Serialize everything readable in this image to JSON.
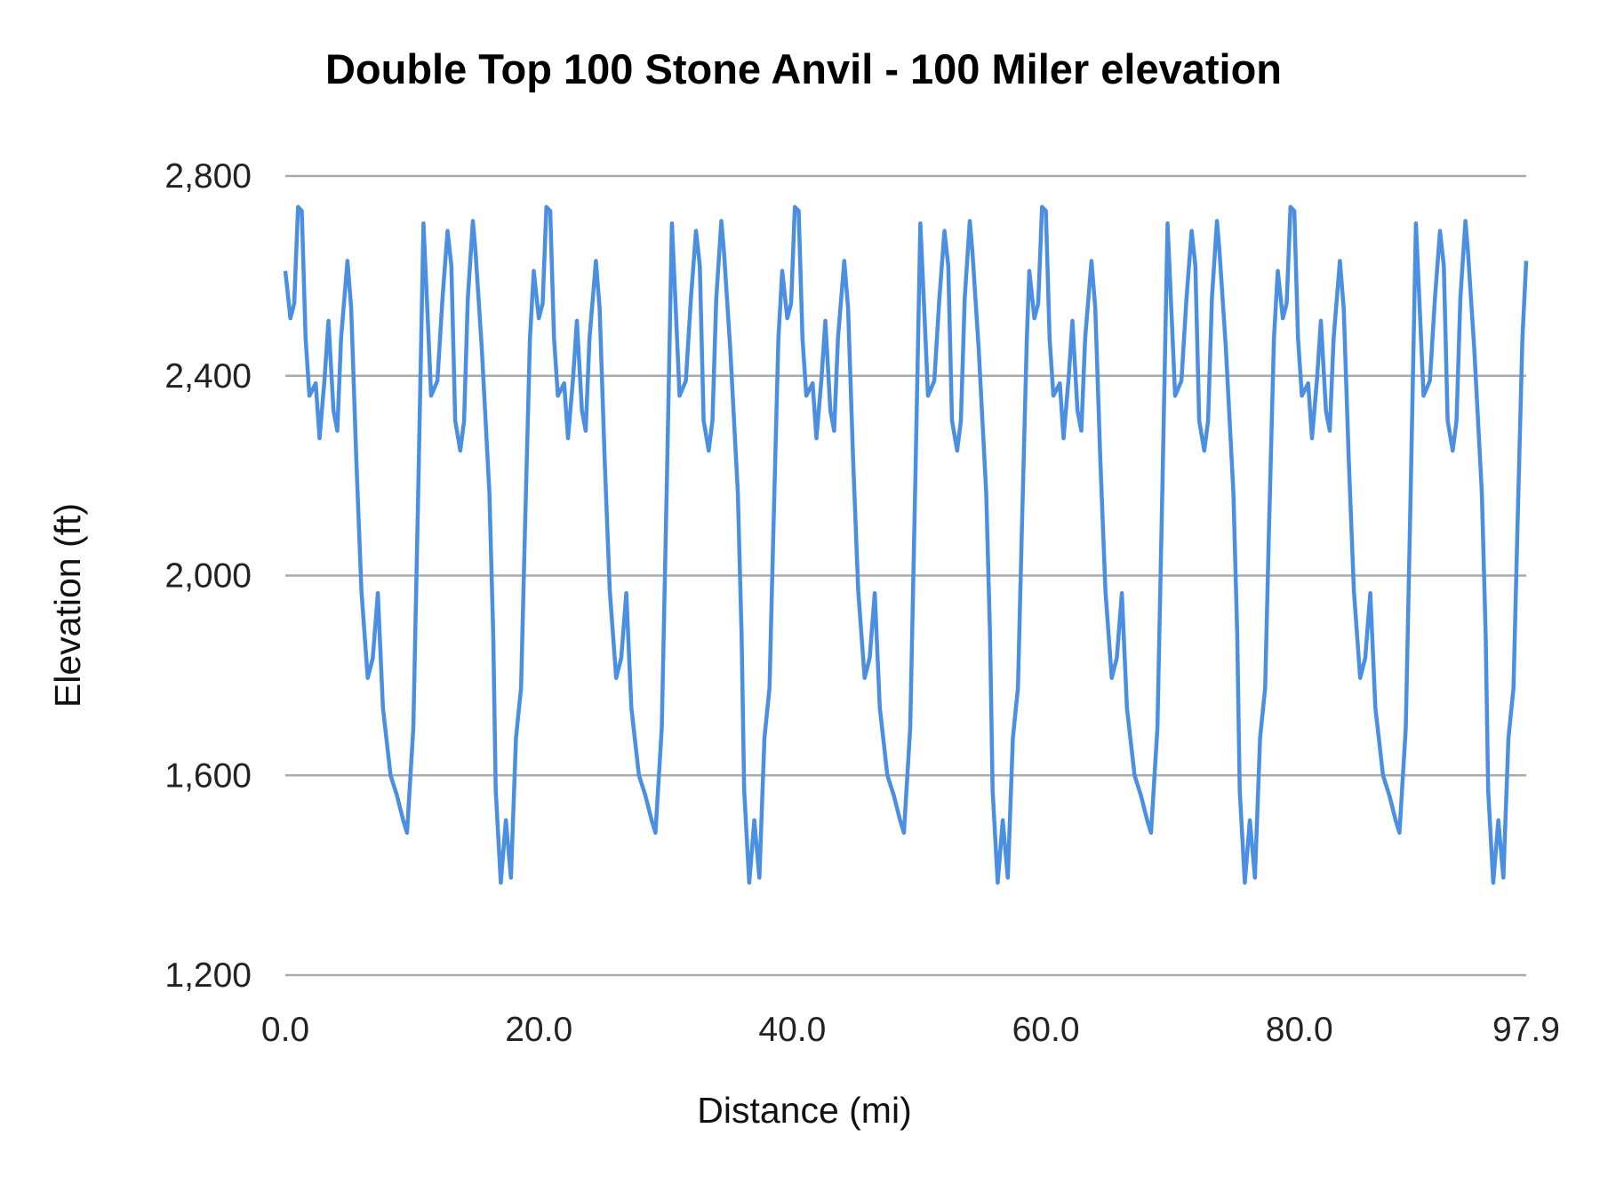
{
  "chart_data": {
    "type": "line",
    "title": "Double Top 100 Stone Anvil - 100 Miler elevation",
    "xlabel": "Distance (mi)",
    "ylabel": "Elevation (ft)",
    "xlim": [
      0,
      97.9
    ],
    "ylim": [
      1200,
      2800
    ],
    "x_ticks": [
      "0.0",
      "20.0",
      "40.0",
      "60.0",
      "80.0",
      "97.9"
    ],
    "x_tick_values": [
      0,
      20,
      40,
      60,
      80,
      97.9
    ],
    "y_ticks": [
      "1,200",
      "1,600",
      "2,000",
      "2,400",
      "2,800"
    ],
    "y_tick_values": [
      1200,
      1600,
      2000,
      2400,
      2800
    ],
    "grid": "horizontal",
    "line_color": "#4A8FE2",
    "grid_color": "#AAAAAA",
    "series": [
      {
        "x": [
          0,
          0.4,
          0.7,
          1.0,
          1.3,
          1.6,
          1.9,
          2.4,
          2.7,
          3.1,
          3.4,
          3.8,
          4.1,
          4.4,
          4.9,
          5.2,
          5.6,
          6.0,
          6.5,
          6.9,
          7.3,
          7.7,
          8.3,
          8.8,
          9.3,
          9.6,
          10.1,
          10.5,
          10.9,
          11.2,
          11.5,
          12.0,
          12.4,
          12.8,
          13.1,
          13.4,
          13.8,
          14.1,
          14.4,
          14.8,
          15.0,
          15.5,
          16.1,
          16.4,
          16.6,
          17.0,
          17.4,
          17.8,
          18.2,
          18.6,
          18.9,
          19.3,
          19.6,
          20.0,
          20.3,
          20.6,
          20.9,
          21.2,
          21.5,
          22.0,
          22.3,
          22.7,
          23.0,
          23.4,
          23.7,
          24.0,
          24.5,
          24.8,
          25.2,
          25.6,
          26.1,
          26.5,
          26.9,
          27.3,
          27.9,
          28.4,
          28.9,
          29.2,
          29.7,
          30.1,
          30.5,
          30.8,
          31.1,
          31.6,
          32.0,
          32.4,
          32.7,
          33.0,
          33.4,
          33.7,
          34.0,
          34.4,
          34.6,
          35.1,
          35.7,
          36.0,
          36.2,
          36.6,
          37.0,
          37.4,
          37.8,
          38.2,
          38.5,
          38.9,
          39.2,
          39.6,
          39.9,
          40.2,
          40.5,
          40.8,
          41.1,
          41.6,
          41.9,
          42.3,
          42.6,
          43.0,
          43.3,
          43.6,
          44.1,
          44.4,
          44.8,
          45.2,
          45.7,
          46.1,
          46.5,
          46.9,
          47.5,
          48.0,
          48.5,
          48.8,
          49.3,
          49.7,
          50.1,
          50.4,
          50.7,
          51.2,
          51.6,
          52.0,
          52.3,
          52.6,
          53.0,
          53.3,
          53.6,
          54.0,
          54.2,
          54.7,
          55.3,
          55.6,
          55.8,
          56.2,
          56.6,
          57.0,
          57.4,
          57.8,
          58.1,
          58.5,
          58.7,
          59.1,
          59.4,
          59.7,
          60.0,
          60.3,
          60.6,
          61.1,
          61.4,
          61.8,
          62.1,
          62.5,
          62.8,
          63.1,
          63.6,
          63.9,
          64.3,
          64.7,
          65.2,
          65.6,
          66.0,
          66.4,
          67.0,
          67.5,
          68.0,
          68.3,
          68.8,
          69.2,
          69.6,
          69.9,
          70.2,
          70.7,
          71.1,
          71.5,
          71.8,
          72.1,
          72.5,
          72.8,
          73.1,
          73.5,
          73.7,
          74.2,
          74.8,
          75.1,
          75.3,
          75.7,
          76.1,
          76.5,
          76.9,
          77.3,
          77.6,
          78.0,
          78.3,
          78.7,
          79.0,
          79.3,
          79.6,
          79.9,
          80.2,
          80.7,
          81.0,
          81.4,
          81.7,
          82.1,
          82.4,
          82.7,
          83.2,
          83.5,
          83.9,
          84.3,
          84.8,
          85.2,
          85.6,
          86.0,
          86.6,
          87.1,
          87.6,
          87.9,
          88.4,
          88.8,
          89.2,
          89.5,
          89.8,
          90.3,
          90.7,
          91.1,
          91.4,
          91.7,
          92.1,
          92.4,
          92.7,
          93.1,
          93.3,
          93.8,
          94.4,
          94.7,
          94.9,
          95.3,
          95.7,
          96.1,
          96.5,
          96.9,
          97.2,
          97.6,
          97.9
        ],
        "y": [
          2610,
          2515,
          2545,
          2738,
          2730,
          2475,
          2360,
          2385,
          2275,
          2395,
          2510,
          2330,
          2290,
          2475,
          2630,
          2535,
          2230,
          1970,
          1795,
          1835,
          1965,
          1735,
          1600,
          1560,
          1510,
          1485,
          1695,
          2185,
          2705,
          2535,
          2360,
          2390,
          2555,
          2690,
          2620,
          2310,
          2250,
          2310,
          2555,
          2710,
          2650,
          2455,
          2165,
          1880,
          1570,
          1385,
          1510,
          1395,
          1675,
          1775,
          2085,
          2475,
          2610,
          2515,
          2545,
          2738,
          2730,
          2475,
          2360,
          2385,
          2275,
          2395,
          2510,
          2330,
          2290,
          2475,
          2630,
          2535,
          2230,
          1970,
          1795,
          1835,
          1965,
          1735,
          1600,
          1560,
          1510,
          1485,
          1695,
          2185,
          2705,
          2535,
          2360,
          2390,
          2555,
          2690,
          2620,
          2310,
          2250,
          2310,
          2555,
          2710,
          2650,
          2455,
          2165,
          1880,
          1570,
          1385,
          1510,
          1395,
          1675,
          1775,
          2085,
          2475,
          2610,
          2515,
          2545,
          2738,
          2730,
          2475,
          2360,
          2385,
          2275,
          2395,
          2510,
          2330,
          2290,
          2475,
          2630,
          2535,
          2230,
          1970,
          1795,
          1835,
          1965,
          1735,
          1600,
          1560,
          1510,
          1485,
          1695,
          2185,
          2705,
          2535,
          2360,
          2390,
          2555,
          2690,
          2620,
          2310,
          2250,
          2310,
          2555,
          2710,
          2650,
          2455,
          2165,
          1880,
          1570,
          1385,
          1510,
          1395,
          1675,
          1775,
          2085,
          2475,
          2610,
          2515,
          2545,
          2738,
          2730,
          2475,
          2360,
          2385,
          2275,
          2395,
          2510,
          2330,
          2290,
          2475,
          2630,
          2535,
          2230,
          1970,
          1795,
          1835,
          1965,
          1735,
          1600,
          1560,
          1510,
          1485,
          1695,
          2185,
          2705,
          2535,
          2360,
          2390,
          2555,
          2690,
          2620,
          2310,
          2250,
          2310,
          2555,
          2710,
          2650,
          2455,
          2165,
          1880,
          1570,
          1385,
          1510,
          1395,
          1675,
          1775,
          2085,
          2475,
          2610,
          2515,
          2545,
          2738,
          2730,
          2475,
          2360,
          2385,
          2275,
          2395,
          2510,
          2330,
          2290,
          2475,
          2630,
          2535,
          2230,
          1970,
          1795,
          1835,
          1965,
          1735,
          1600,
          1560,
          1510,
          1485,
          1695,
          2185,
          2705,
          2535,
          2360,
          2390,
          2555,
          2690,
          2620,
          2310,
          2250,
          2310,
          2555,
          2710,
          2650,
          2455,
          2165,
          1880,
          1570,
          1385,
          1510,
          1395,
          1675,
          1775,
          2085,
          2475,
          2630
        ]
      }
    ]
  }
}
